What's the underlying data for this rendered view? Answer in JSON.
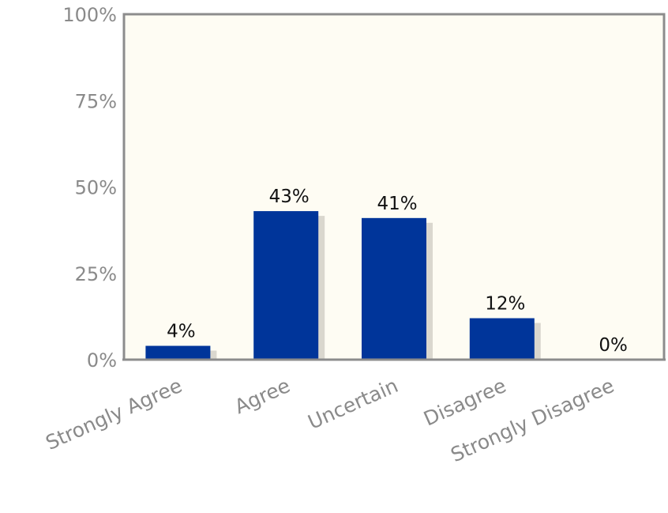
{
  "chart_data": {
    "type": "bar",
    "categories": [
      "Strongly Agree",
      "Agree",
      "Uncertain",
      "Disagree",
      "Strongly Disagree"
    ],
    "values": [
      4,
      43,
      41,
      12,
      0
    ],
    "data_labels": [
      "4%",
      "43%",
      "41%",
      "12%",
      "0%"
    ],
    "y_ticks": [
      {
        "value": 0,
        "label": "0%"
      },
      {
        "value": 25,
        "label": "25%"
      },
      {
        "value": 50,
        "label": "50%"
      },
      {
        "value": 75,
        "label": "75%"
      },
      {
        "value": 100,
        "label": "100%"
      }
    ],
    "ylim": [
      0,
      100
    ],
    "title": "",
    "xlabel": "",
    "ylabel": "",
    "grid": false,
    "legend": "none",
    "colors": {
      "bar": "#00359a",
      "plot_background": "#fefcf3",
      "frame": "#8c8c8c",
      "bar_shadow": "#d6d3ca"
    }
  }
}
